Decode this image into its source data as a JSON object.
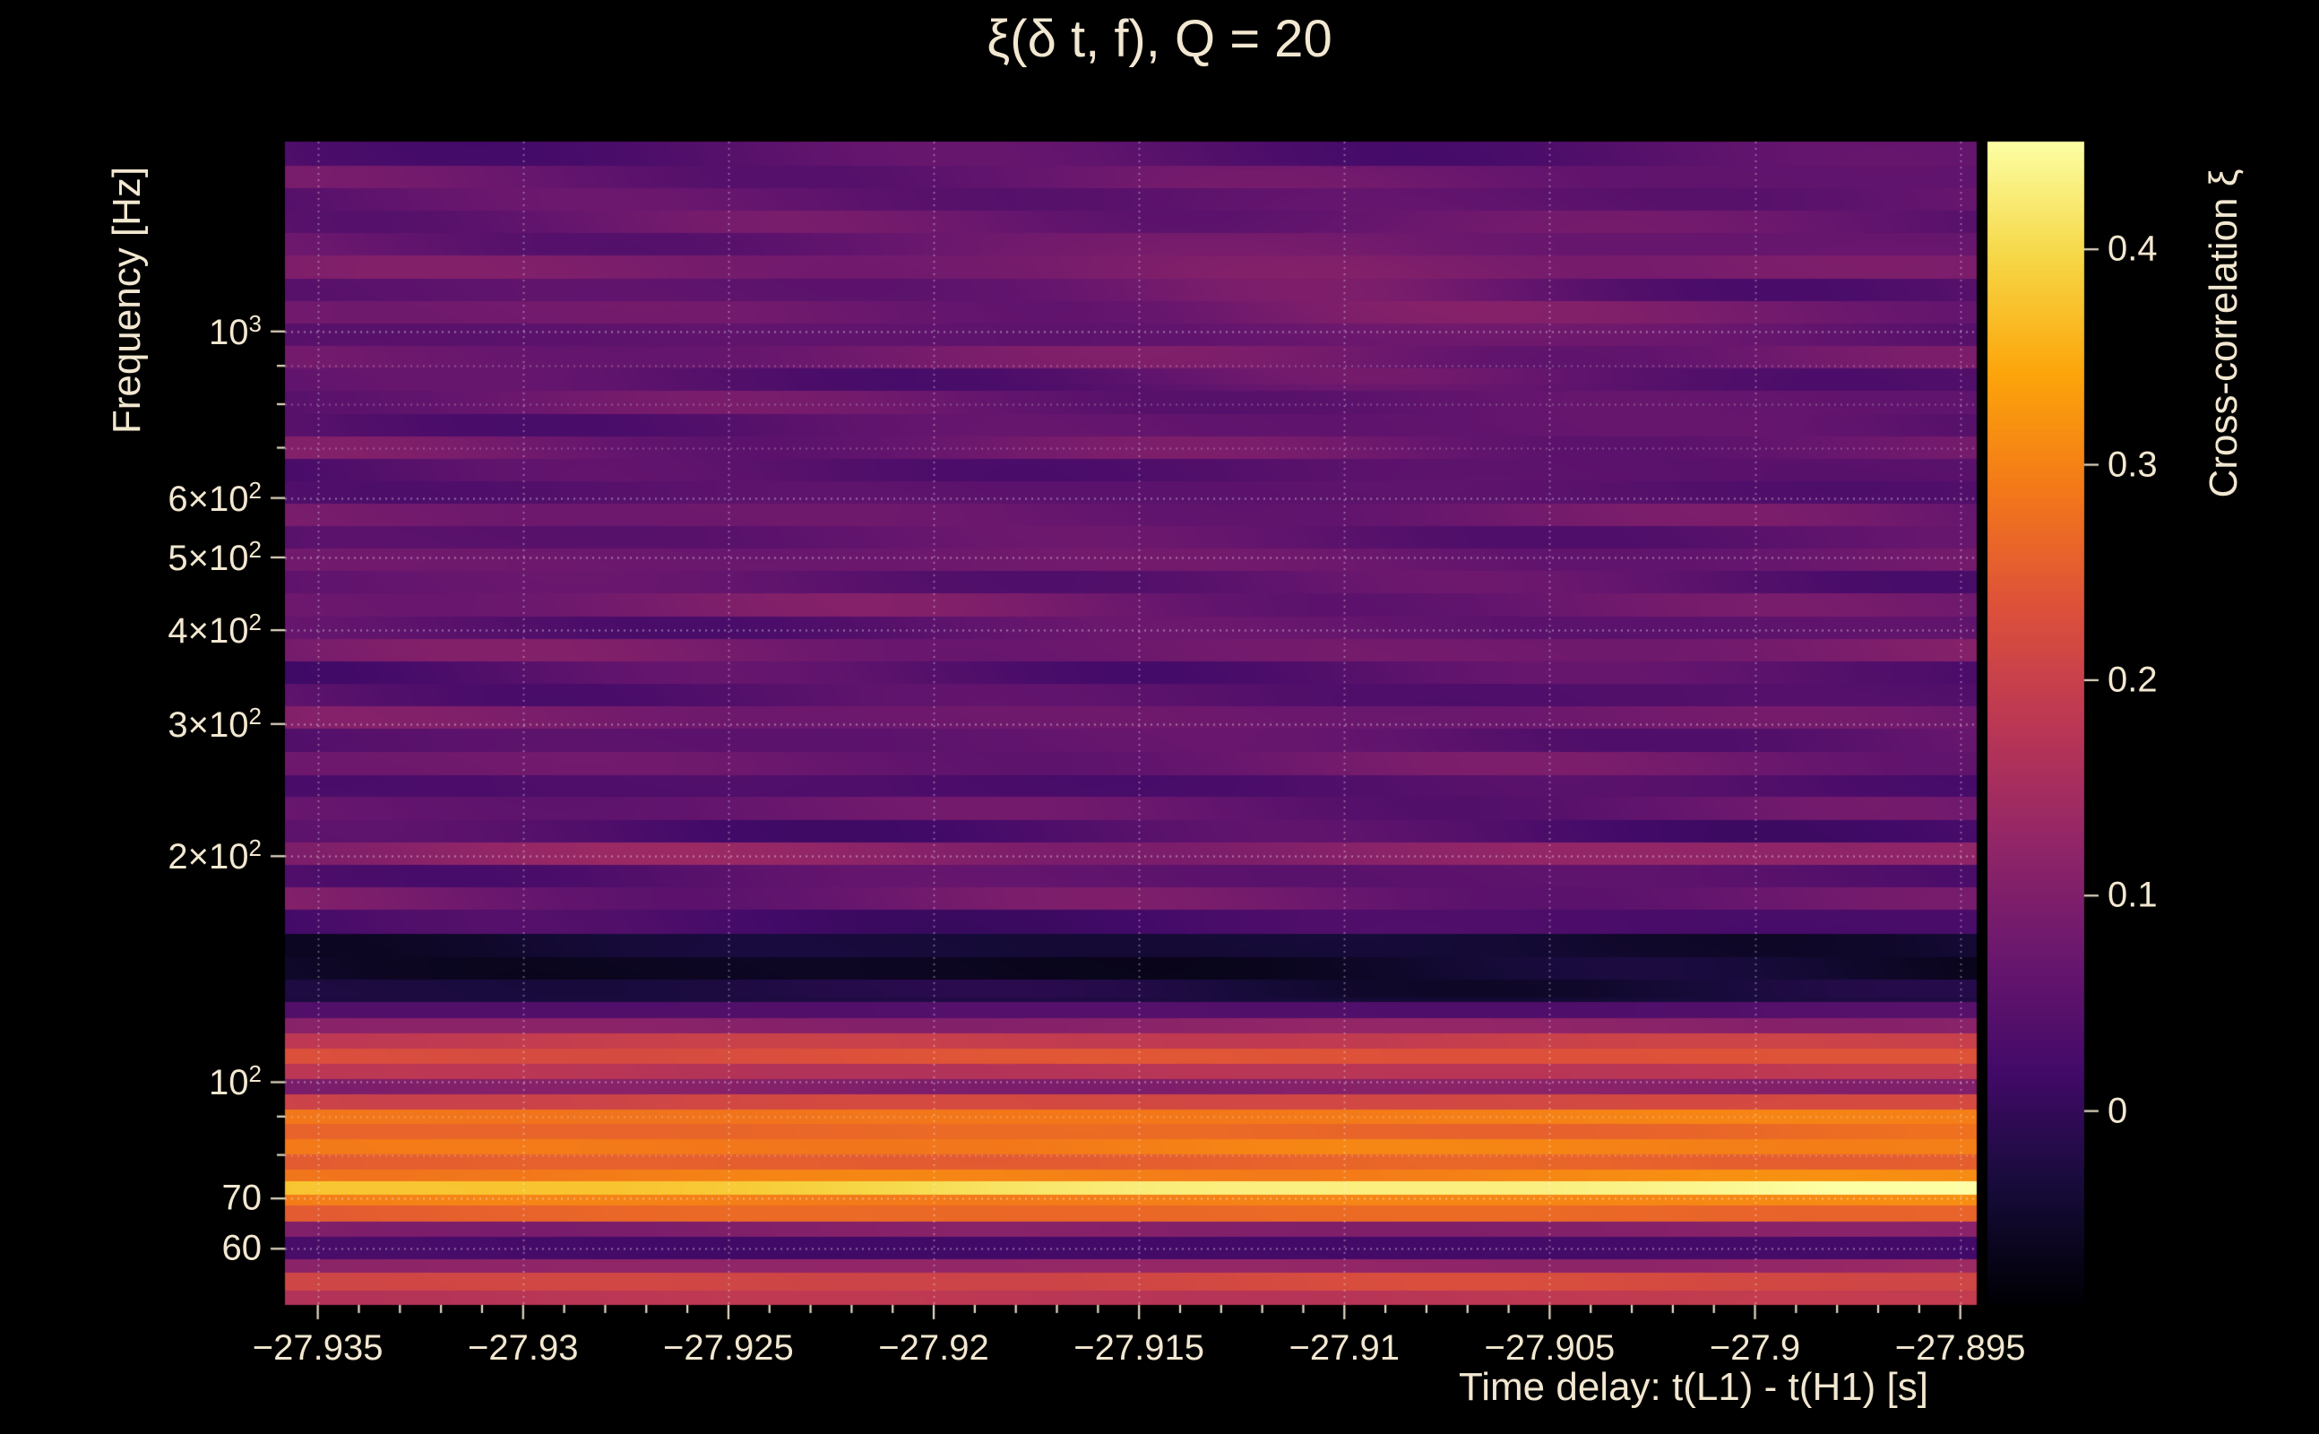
{
  "figure": {
    "background_color": "#000000",
    "text_color": "#f2e7d0",
    "grid_color": "#ffffff"
  },
  "chart_data": {
    "type": "heatmap",
    "title": "ξ(δ t, f), Q = 20",
    "xlabel": "Time delay: t(L1) - t(H1) [s]",
    "ylabel": "Frequency [Hz]",
    "colorbar_label": "Cross-correlation ξ",
    "colormap": "inferno",
    "x_range": [
      -27.9358,
      -27.8946
    ],
    "y_range_hz": [
      50.5,
      1790
    ],
    "y_scale": "log",
    "value_range": [
      -0.09,
      0.45
    ],
    "x_ticks": [
      -27.935,
      -27.93,
      -27.925,
      -27.92,
      -27.915,
      -27.91,
      -27.905,
      -27.9,
      -27.895
    ],
    "x_tick_labels": [
      "−27.935",
      "−27.93",
      "−27.925",
      "−27.92",
      "−27.915",
      "−27.91",
      "−27.905",
      "−27.9",
      "−27.895"
    ],
    "x_minor_tick_step": 0.001,
    "y_ticks": [
      {
        "f": 1000,
        "base": "10",
        "sup": "3"
      },
      {
        "f": 600,
        "base": "6×10",
        "sup": "2"
      },
      {
        "f": 500,
        "base": "5×10",
        "sup": "2"
      },
      {
        "f": 400,
        "base": "4×10",
        "sup": "2"
      },
      {
        "f": 300,
        "base": "3×10",
        "sup": "2"
      },
      {
        "f": 200,
        "base": "2×10",
        "sup": "2"
      },
      {
        "f": 100,
        "base": "10",
        "sup": "2"
      },
      {
        "f": 70,
        "base": "70",
        "sup": ""
      },
      {
        "f": 60,
        "base": "60",
        "sup": ""
      }
    ],
    "y_minor_ticks": [
      80,
      90,
      700,
      800,
      900
    ],
    "grid_freqs_major": [
      60,
      70,
      100,
      200,
      300,
      400,
      500,
      600,
      1000
    ],
    "grid_freqs_minor": [
      80,
      90,
      700,
      800,
      900
    ],
    "colorbar_ticks": [
      {
        "v": 0,
        "label": "0"
      },
      {
        "v": 0.1,
        "label": "0.1"
      },
      {
        "v": 0.2,
        "label": "0.2"
      },
      {
        "v": 0.3,
        "label": "0.3"
      },
      {
        "v": 0.4,
        "label": "0.4"
      }
    ],
    "band_format": [
      "f_lo_hz",
      "f_hi_hz",
      "value_left",
      "value_right"
    ],
    "bands": [
      [
        50.0,
        52.8,
        0.17,
        0.19
      ],
      [
        52.8,
        55.8,
        0.21,
        0.22
      ],
      [
        55.8,
        58.2,
        0.12,
        0.13
      ],
      [
        58.2,
        62.3,
        0.02,
        0.02
      ],
      [
        62.3,
        65.3,
        0.1,
        0.11
      ],
      [
        65.3,
        68.6,
        0.26,
        0.27
      ],
      [
        68.6,
        70.9,
        0.29,
        0.31
      ],
      [
        70.9,
        73.8,
        0.37,
        0.46
      ],
      [
        73.8,
        76.6,
        0.29,
        0.31
      ],
      [
        76.6,
        80.2,
        0.25,
        0.26
      ],
      [
        80.2,
        84.0,
        0.29,
        0.3
      ],
      [
        84.0,
        88.0,
        0.26,
        0.27
      ],
      [
        88.0,
        92.2,
        0.28,
        0.3
      ],
      [
        92.2,
        96.6,
        0.21,
        0.22
      ],
      [
        96.6,
        101.2,
        0.1,
        0.11
      ],
      [
        101.2,
        106.0,
        0.17,
        0.18
      ],
      [
        106.0,
        111.0,
        0.23,
        0.24
      ],
      [
        111.0,
        116.3,
        0.19,
        0.2
      ],
      [
        116.3,
        121.8,
        0.11,
        0.12
      ],
      [
        121.8,
        128.0,
        0.04,
        0.04
      ],
      [
        128.0,
        137.0,
        -0.03,
        -0.03
      ],
      [
        137.0,
        147.0,
        -0.06,
        -0.05
      ],
      [
        147.0,
        158.0,
        -0.04,
        -0.04
      ],
      [
        158.0,
        170.0,
        0.02,
        0.03
      ],
      [
        170.0,
        182.0,
        0.08,
        0.07
      ],
      [
        182.0,
        195.0,
        0.05,
        0.05
      ],
      [
        195.0,
        209.0,
        0.11,
        0.12
      ],
      [
        209.0,
        224.0,
        0.04,
        0.03
      ],
      [
        224.0,
        240.0,
        0.07,
        0.06
      ],
      [
        240.0,
        257.0,
        0.03,
        0.04
      ],
      [
        257.0,
        276.0,
        0.08,
        0.07
      ],
      [
        276.0,
        296.0,
        0.05,
        0.06
      ],
      [
        296.0,
        317.0,
        0.09,
        0.07
      ],
      [
        317.0,
        340.0,
        0.05,
        0.04
      ],
      [
        340.0,
        364.0,
        0.04,
        0.05
      ],
      [
        364.0,
        390.0,
        0.08,
        0.09
      ],
      [
        390.0,
        418.0,
        0.05,
        0.06
      ],
      [
        418.0,
        448.0,
        0.09,
        0.07
      ],
      [
        448.0,
        480.0,
        0.06,
        0.05
      ],
      [
        480.0,
        514.0,
        0.08,
        0.07
      ],
      [
        514.0,
        551.0,
        0.05,
        0.06
      ],
      [
        551.0,
        590.0,
        0.08,
        0.07
      ],
      [
        590.0,
        632.0,
        0.05,
        0.05
      ],
      [
        632.0,
        678.0,
        0.04,
        0.05
      ],
      [
        678.0,
        726.0,
        0.08,
        0.07
      ],
      [
        726.0,
        778.0,
        0.05,
        0.06
      ],
      [
        778.0,
        834.0,
        0.07,
        0.06
      ],
      [
        834.0,
        894.0,
        0.05,
        0.05
      ],
      [
        894.0,
        958.0,
        0.08,
        0.07
      ],
      [
        958.0,
        1026.0,
        0.05,
        0.06
      ],
      [
        1026.0,
        1100.0,
        0.08,
        0.07
      ],
      [
        1100.0,
        1178.0,
        0.06,
        0.05
      ],
      [
        1178.0,
        1263.0,
        0.09,
        0.08
      ],
      [
        1263.0,
        1353.0,
        0.06,
        0.07
      ],
      [
        1353.0,
        1450.0,
        0.07,
        0.06
      ],
      [
        1450.0,
        1554.0,
        0.05,
        0.06
      ],
      [
        1554.0,
        1665.0,
        0.07,
        0.06
      ],
      [
        1665.0,
        1800.0,
        0.04,
        0.05
      ]
    ]
  }
}
